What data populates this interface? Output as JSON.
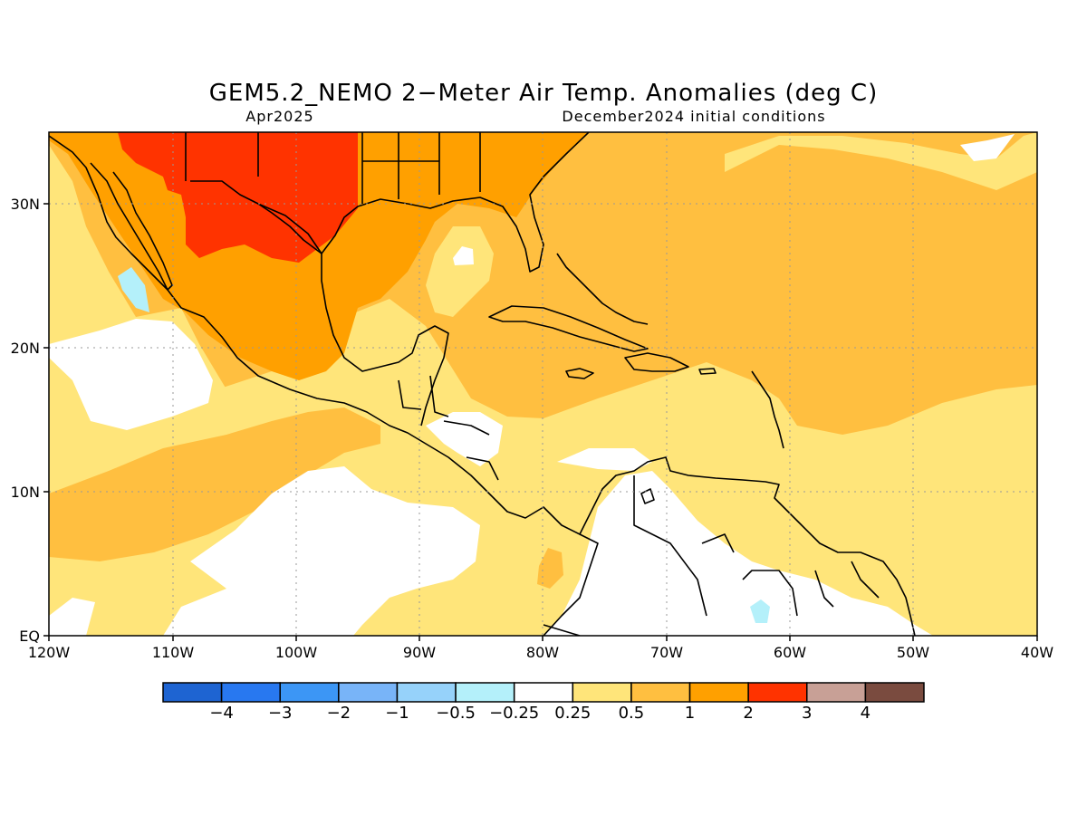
{
  "title": "GEM5.2_NEMO 2−Meter Air Temp. Anomalies (deg C)",
  "subtitle_left": "Apr2025",
  "subtitle_right": "December2024 initial conditions",
  "map": {
    "lon_range": [
      -120,
      -40
    ],
    "lat_range": [
      0,
      35
    ],
    "lon_ticks": [
      "120W",
      "110W",
      "100W",
      "90W",
      "80W",
      "70W",
      "60W",
      "50W",
      "40W"
    ],
    "lat_ticks": [
      "EQ",
      "10N",
      "20N",
      "30N"
    ],
    "grid": "dotted",
    "background_color": "#ffe57a"
  },
  "colorbar": {
    "colors": [
      "#1e64d2",
      "#2878f0",
      "#3c96f5",
      "#78b4f8",
      "#96d2fa",
      "#b4f0fa",
      "#ffffff",
      "#ffe57a",
      "#ffbf40",
      "#ffa000",
      "#ff3300",
      "#c8a096",
      "#7a4b3f"
    ],
    "labels": [
      "−4",
      "−3",
      "−2",
      "−1",
      "−0.5",
      "−0.25",
      "0.25",
      "0.5",
      "1",
      "2",
      "3",
      "4"
    ]
  }
}
